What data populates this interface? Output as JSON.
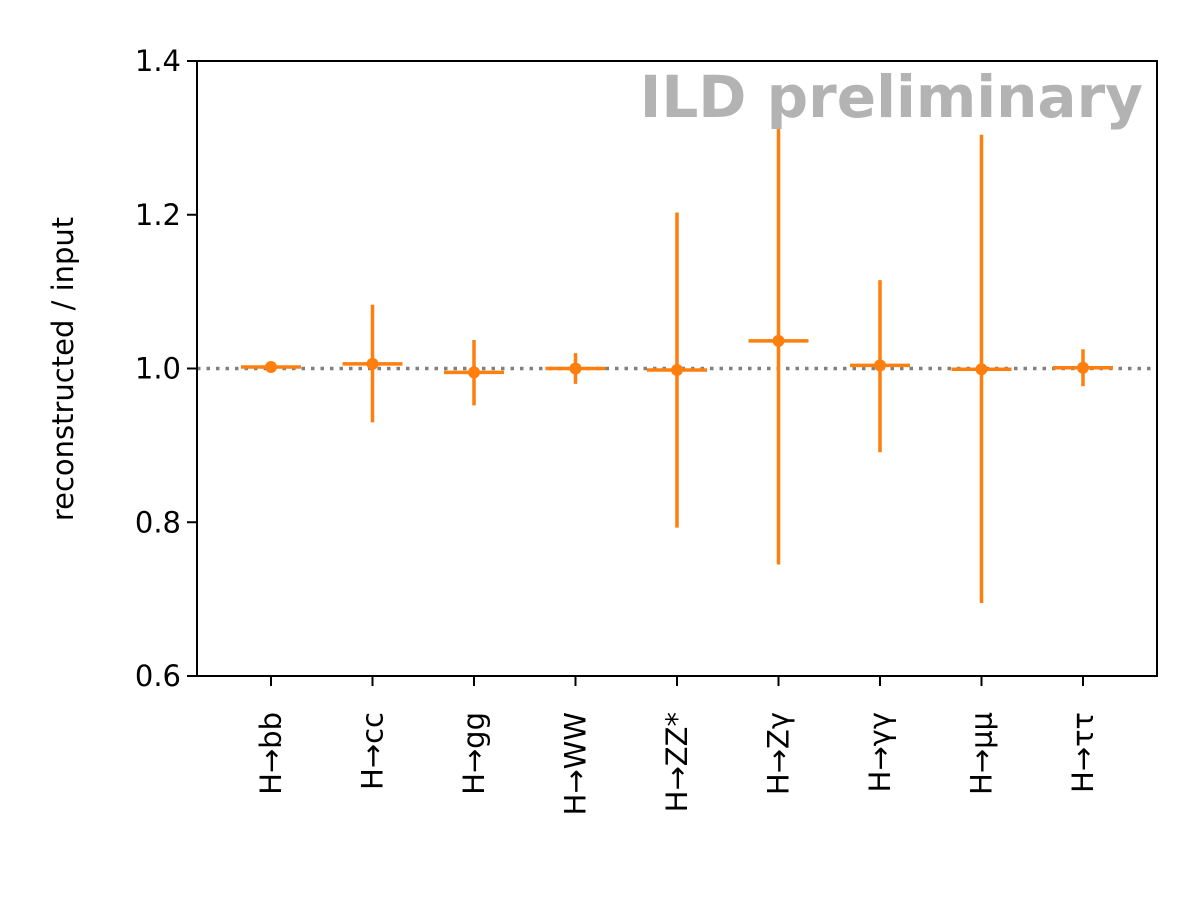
{
  "chart_data": {
    "type": "scatter",
    "title": "",
    "xlabel": "",
    "ylabel": "reconstructed / input",
    "annotation": "ILD preliminary",
    "categories": [
      "H→bb",
      "H→cc",
      "H→gg",
      "H→WW",
      "H→ZZ*",
      "H→Zγ",
      "H→γγ",
      "H→μμ",
      "H→ττ"
    ],
    "series": [
      {
        "values": [
          1.002,
          1.006,
          0.995,
          1.0,
          0.998,
          1.036,
          1.004,
          0.999,
          1.001
        ],
        "err_low": [
          0.002,
          0.076,
          0.043,
          0.02,
          0.205,
          0.291,
          0.113,
          0.304,
          0.024
        ],
        "err_high": [
          0.002,
          0.077,
          0.042,
          0.02,
          0.205,
          0.291,
          0.111,
          0.305,
          0.024
        ],
        "color": "#ff7f0e"
      }
    ],
    "ylim": [
      0.6,
      1.4
    ],
    "yticks": [
      "0.6",
      "0.8",
      "1.0",
      "1.2",
      "1.4"
    ],
    "reference_line": {
      "y": 1.0,
      "style": "dotted",
      "color": "#808080"
    },
    "grid": false,
    "legend": "none"
  }
}
